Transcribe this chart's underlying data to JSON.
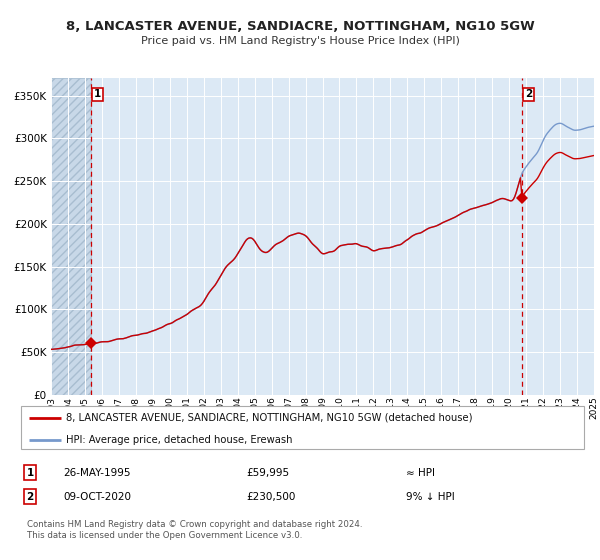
{
  "title1": "8, LANCASTER AVENUE, SANDIACRE, NOTTINGHAM, NG10 5GW",
  "title2": "Price paid vs. HM Land Registry's House Price Index (HPI)",
  "sale1_price": 59995,
  "sale2_price": 230500,
  "legend_line1": "8, LANCASTER AVENUE, SANDIACRE, NOTTINGHAM, NG10 5GW (detached house)",
  "legend_line2": "HPI: Average price, detached house, Erewash",
  "annotation1_date": "26-MAY-1995",
  "annotation1_price": "£59,995",
  "annotation1_rel": "≈ HPI",
  "annotation2_date": "09-OCT-2020",
  "annotation2_price": "£230,500",
  "annotation2_rel": "9% ↓ HPI",
  "footnote": "Contains HM Land Registry data © Crown copyright and database right 2024.\nThis data is licensed under the Open Government Licence v3.0.",
  "hpi_color": "#7799cc",
  "price_color": "#cc0000",
  "plot_bg": "#dce9f5",
  "grid_color": "#ffffff",
  "dashed_color": "#cc0000",
  "marker_color": "#cc0000",
  "ylim": [
    0,
    370000
  ],
  "yticks": [
    0,
    50000,
    100000,
    150000,
    200000,
    250000,
    300000,
    350000
  ],
  "xstart_year": 1993,
  "xend_year": 2025,
  "sale1_t": 1995.333,
  "sale2_t": 2020.75,
  "hpi_waypoints_t": [
    1993.0,
    1993.5,
    1994.0,
    1994.5,
    1995.0,
    1995.333,
    1995.5,
    1996.0,
    1996.5,
    1997.0,
    1997.5,
    1998.0,
    1998.5,
    1999.0,
    1999.5,
    2000.0,
    2000.5,
    2001.0,
    2001.3,
    2001.7,
    2002.0,
    2002.3,
    2002.7,
    2003.0,
    2003.3,
    2003.7,
    2004.0,
    2004.3,
    2004.6,
    2005.0,
    2005.3,
    2005.7,
    2006.0,
    2006.3,
    2006.7,
    2007.0,
    2007.3,
    2007.7,
    2008.0,
    2008.3,
    2008.7,
    2009.0,
    2009.3,
    2009.7,
    2010.0,
    2010.3,
    2010.7,
    2011.0,
    2011.3,
    2011.7,
    2012.0,
    2012.3,
    2012.7,
    2013.0,
    2013.3,
    2013.7,
    2014.0,
    2014.3,
    2014.7,
    2015.0,
    2015.3,
    2015.7,
    2016.0,
    2016.3,
    2016.7,
    2017.0,
    2017.3,
    2017.7,
    2018.0,
    2018.3,
    2018.7,
    2019.0,
    2019.3,
    2019.7,
    2020.0,
    2020.3,
    2020.75,
    2021.0,
    2021.3,
    2021.7,
    2022.0,
    2022.3,
    2022.7,
    2023.0,
    2023.3,
    2023.7,
    2024.0,
    2024.3,
    2024.6
  ],
  "hpi_waypoints_v": [
    52000,
    53000,
    54500,
    56000,
    57500,
    59000,
    59500,
    60500,
    61500,
    63000,
    65000,
    67500,
    70000,
    73000,
    77000,
    81000,
    86000,
    92000,
    96000,
    100000,
    107000,
    116000,
    126000,
    136000,
    145000,
    153000,
    161000,
    170000,
    178000,
    175000,
    166000,
    163000,
    167000,
    172000,
    176000,
    181000,
    183000,
    184000,
    181000,
    175000,
    167000,
    161000,
    163000,
    164000,
    169000,
    171000,
    172000,
    172000,
    170000,
    168000,
    165000,
    166000,
    167000,
    168000,
    170000,
    173000,
    177000,
    181000,
    184000,
    187000,
    190000,
    193000,
    196000,
    199000,
    202000,
    205000,
    208000,
    211000,
    213000,
    215000,
    217000,
    219000,
    222000,
    224000,
    222000,
    225000,
    252000,
    260000,
    268000,
    278000,
    290000,
    300000,
    308000,
    310000,
    307000,
    303000,
    302000,
    303000,
    305000
  ]
}
